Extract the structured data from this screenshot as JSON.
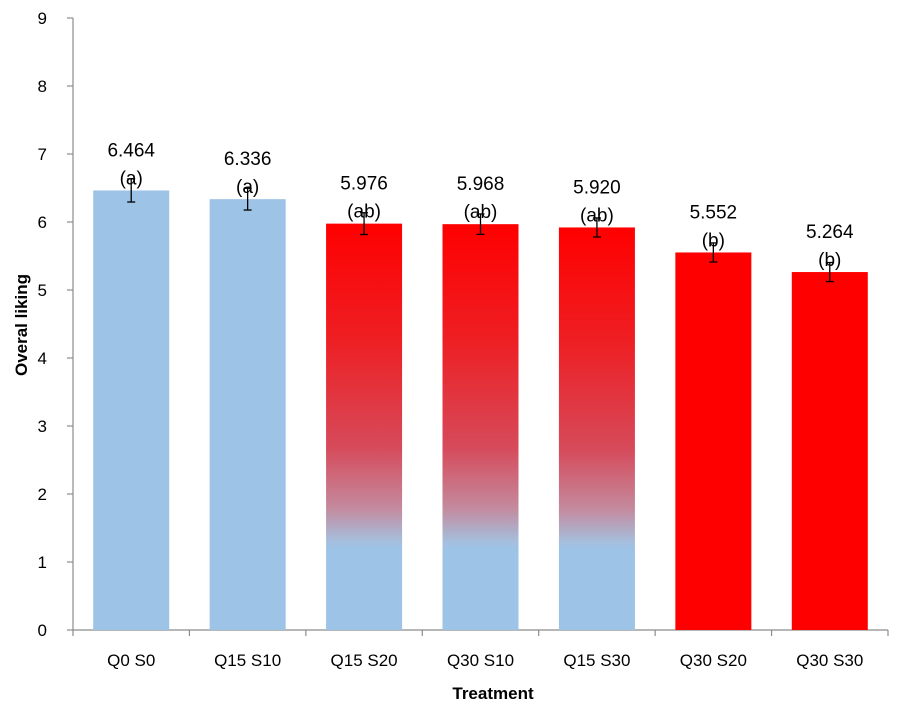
{
  "chart_data": {
    "type": "bar",
    "title": "",
    "xlabel": "Treatment",
    "ylabel": "Overal liking",
    "ylim": [
      0,
      9
    ],
    "yticks": [
      0,
      1,
      2,
      3,
      4,
      5,
      6,
      7,
      8,
      9
    ],
    "grid": false,
    "legend": "none",
    "categories": [
      "Q0 S0",
      "Q15 S10",
      "Q15 S20",
      "Q30 S10",
      "Q15 S30",
      "Q30 S20",
      "Q30 S30"
    ],
    "values": [
      6.464,
      6.336,
      5.976,
      5.968,
      5.92,
      5.552,
      5.264
    ],
    "value_labels": [
      "6.464",
      "6.336",
      "5.976",
      "5.968",
      "5.920",
      "5.552",
      "5.264"
    ],
    "group_labels": [
      "(a)",
      "(a)",
      "(ab)",
      "(ab)",
      "(ab)",
      "(b)",
      "(b)"
    ],
    "error": [
      0.17,
      0.16,
      0.16,
      0.15,
      0.14,
      0.14,
      0.14
    ],
    "fills": [
      "blue",
      "blue",
      "blue-red-gradient",
      "blue-red-gradient",
      "blue-red-gradient",
      "red",
      "red"
    ],
    "colors": {
      "blue": "#9DC3E6",
      "red": "#FF0000"
    }
  }
}
